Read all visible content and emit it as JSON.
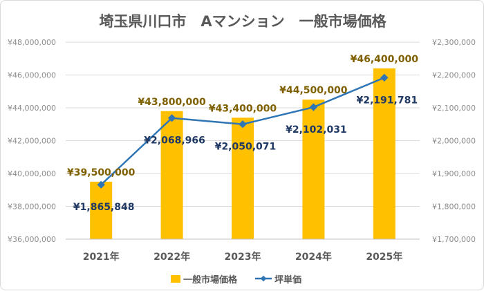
{
  "chart_data": {
    "type": "bar",
    "title": "埼玉県川口市　Aマンション　一般市場価格",
    "categories": [
      "2021年",
      "2022年",
      "2023年",
      "2024年",
      "2025年"
    ],
    "series": [
      {
        "name": "一般市場価格",
        "type": "bar",
        "axis": "left",
        "color": "#ffc000",
        "values": [
          39500000,
          43800000,
          43400000,
          44500000,
          46400000
        ],
        "labels": [
          "¥39,500,000",
          "¥43,800,000",
          "¥43,400,000",
          "¥44,500,000",
          "¥46,400,000"
        ]
      },
      {
        "name": "坪単価",
        "type": "line",
        "axis": "right",
        "color": "#2e75b6",
        "values": [
          1865848,
          2068966,
          2050071,
          2102031,
          2191781
        ],
        "labels": [
          "¥1,865,848",
          "¥2,068,966",
          "¥2,050,071",
          "¥2,102,031",
          "¥2,191,781"
        ]
      }
    ],
    "y_left": {
      "min": 36000000,
      "max": 48000000,
      "step": 2000000,
      "ticks": [
        "¥36,000,000",
        "¥38,000,000",
        "¥40,000,000",
        "¥42,000,000",
        "¥44,000,000",
        "¥46,000,000",
        "¥48,000,000"
      ]
    },
    "y_right": {
      "min": 1700000,
      "max": 2300000,
      "step": 100000,
      "ticks": [
        "¥1,700,000",
        "¥1,800,000",
        "¥1,900,000",
        "¥2,000,000",
        "¥2,100,000",
        "¥2,200,000",
        "¥2,300,000"
      ]
    },
    "grid": true,
    "legend": "bottom"
  }
}
